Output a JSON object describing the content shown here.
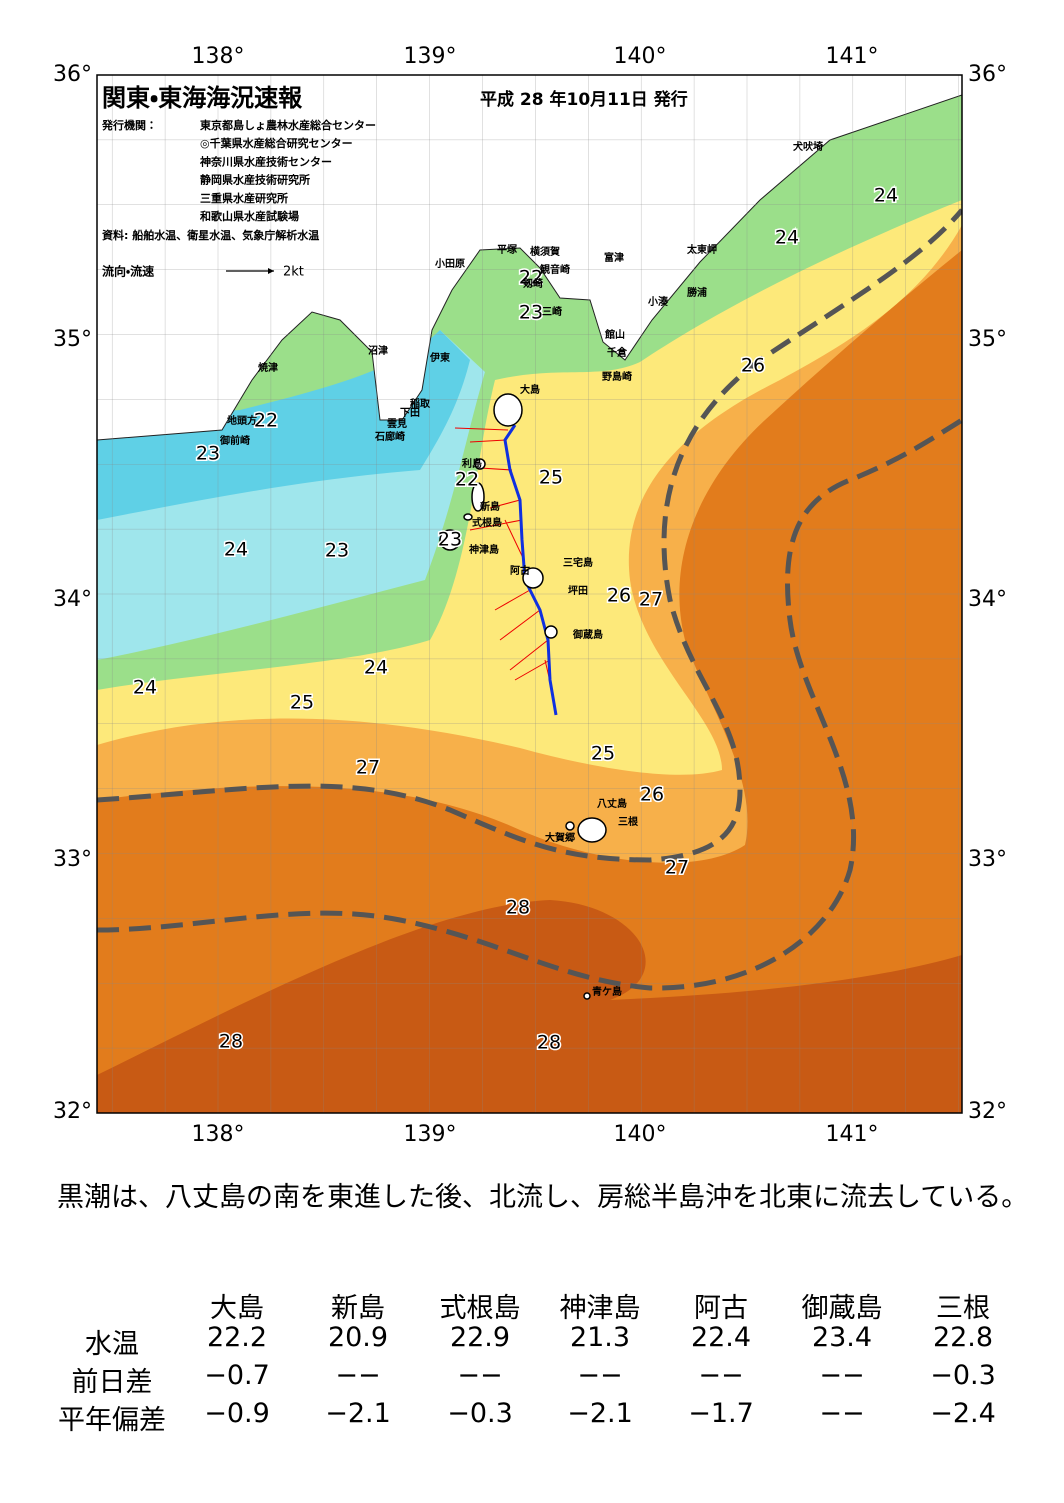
{
  "header": {
    "title": "関東・東海海況速報",
    "date": "平成 28 年10月11日 発行",
    "issuer_label": "発行機関：",
    "issuers": [
      "東京都島しょ農林水産総合センター",
      "◎千葉県水産総合研究センター",
      "神奈川県水産技術センター",
      "静岡県水産技術研究所",
      "三重県水産研究所",
      "和歌山県水産試験場"
    ],
    "sources": "資料: 船舶水温、衛星水温、気象庁解析水温",
    "current_legend": "流向・流速",
    "current_scale": "2kt"
  },
  "map": {
    "lon_labels": [
      "138°",
      "139°",
      "140°",
      "141°"
    ],
    "lat_labels": [
      "36°",
      "35°",
      "34°",
      "33°",
      "32°"
    ],
    "contour_labels": [
      "24",
      "24",
      "22",
      "23",
      "26",
      "22",
      "23",
      "25",
      "22",
      "24",
      "23",
      "23",
      "26",
      "27",
      "24",
      "24",
      "25",
      "25",
      "27",
      "26",
      "27",
      "28",
      "28",
      "28"
    ],
    "place_names": [
      "小田原",
      "平塚",
      "横須賀",
      "観音崎",
      "剱崎",
      "三崎",
      "富津",
      "館山",
      "千倉",
      "野島崎",
      "太東岬",
      "勝浦",
      "小湊",
      "犬吠埼",
      "沼津",
      "伊東",
      "焼津",
      "稲取",
      "下田",
      "雲見",
      "石廊崎",
      "地頭方",
      "御前崎",
      "大島",
      "利島",
      "新島",
      "式根島",
      "神津島",
      "阿古",
      "三宅島",
      "坪田",
      "御蔵島",
      "八丈島",
      "三根",
      "大賀郷",
      "青ケ島"
    ]
  },
  "comment": "黒潮は、八丈島の南を東進した後、北流し、房総半島沖を北東に流去している。",
  "table": {
    "columns": [
      "大島",
      "新島",
      "式根島",
      "神津島",
      "阿古",
      "御蔵島",
      "三根"
    ],
    "rows": [
      {
        "label": "水温",
        "values": [
          "22.2",
          "20.9",
          "22.9",
          "21.3",
          "22.4",
          "23.4",
          "22.8"
        ]
      },
      {
        "label": "前日差",
        "values": [
          "−0.7",
          "−−",
          "−−",
          "−−",
          "−−",
          "−−",
          "−0.3"
        ]
      },
      {
        "label": "平年偏差",
        "values": [
          "−0.9",
          "−2.1",
          "−0.3",
          "−2.1",
          "−1.7",
          "−−",
          "−2.4"
        ]
      }
    ]
  }
}
